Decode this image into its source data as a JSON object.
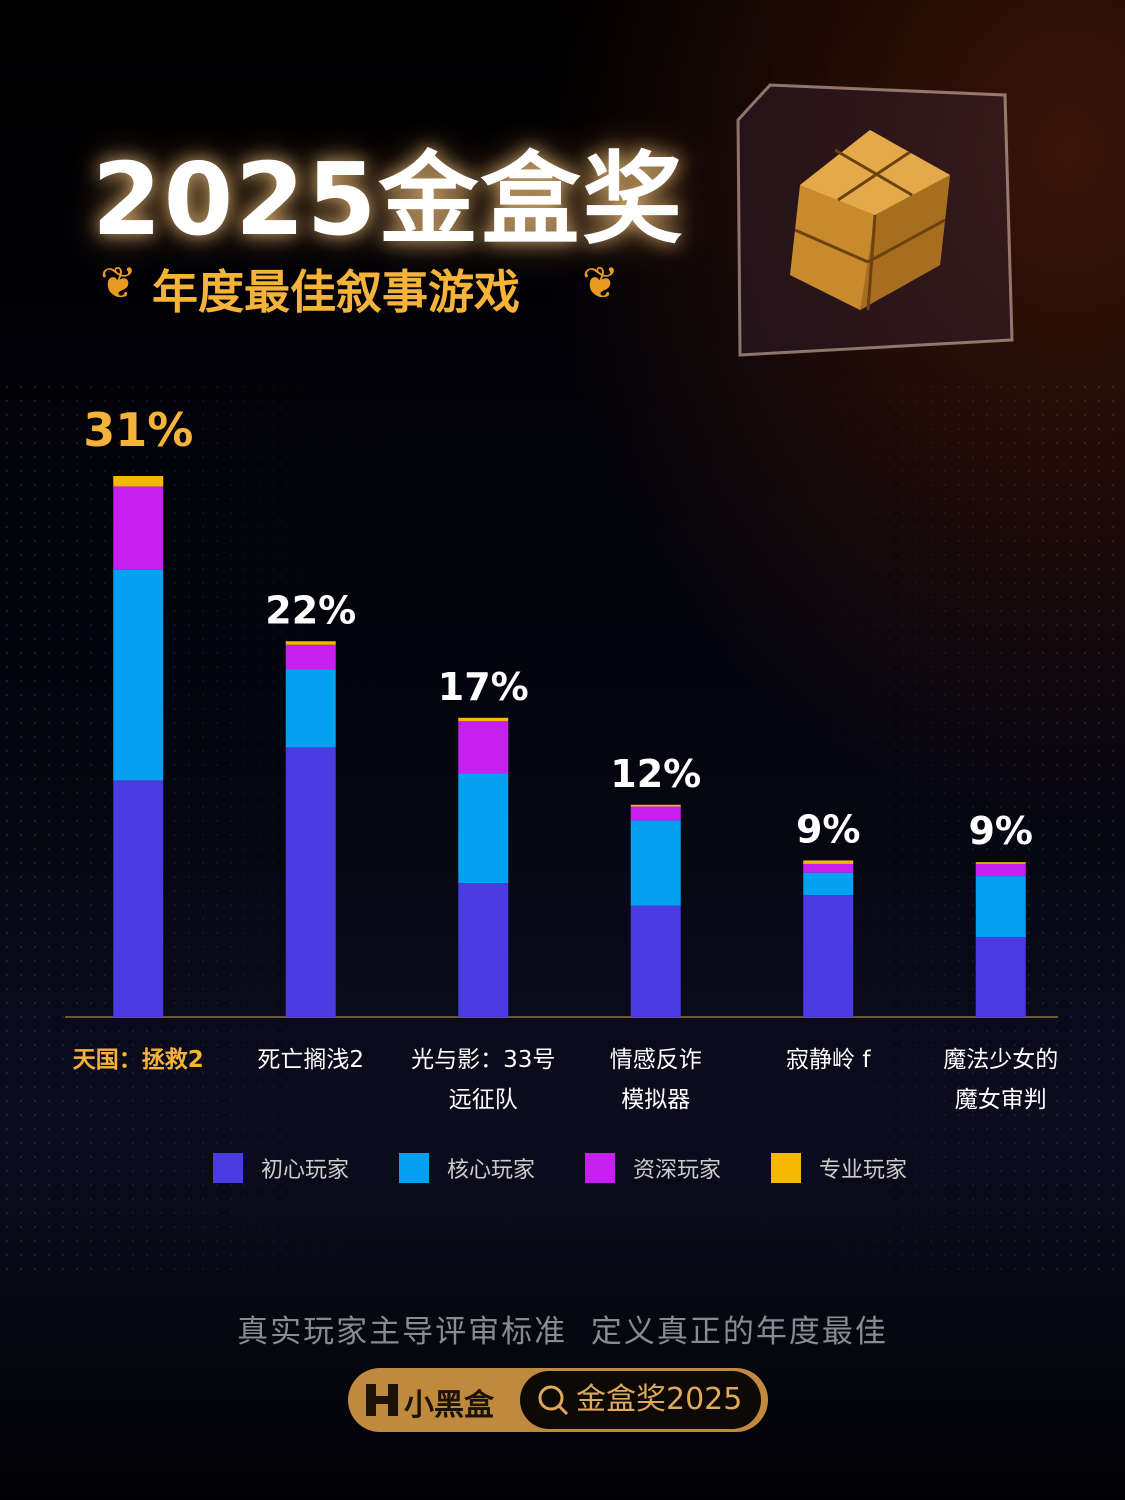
{
  "header": {
    "title": "2025金盒奖",
    "subtitle": "年度最佳叙事游戏"
  },
  "chart_data": {
    "type": "stacked_bar",
    "categories": [
      "天国：拯救2",
      "死亡搁浅2",
      "光与影：33号\n远征队",
      "情感反诈\n模拟器",
      "寂静岭 f",
      "魔法少女的\n魔女审判"
    ],
    "series": [
      {
        "name": "初心玩家",
        "color": "#4a3ce0",
        "values": [
          13.6,
          15.5,
          7.7,
          6.4,
          7.0,
          4.6
        ]
      },
      {
        "name": "核心玩家",
        "color": "#06a0f0",
        "values": [
          12.1,
          4.5,
          6.3,
          4.9,
          1.3,
          3.5
        ]
      },
      {
        "name": "资深玩家",
        "color": "#c61ff0",
        "values": [
          4.8,
          1.4,
          3.0,
          0.8,
          0.5,
          0.7
        ]
      },
      {
        "name": "专业玩家",
        "color": "#f5b800",
        "values": [
          0.6,
          0.2,
          0.2,
          0.1,
          0.2,
          0.1
        ]
      }
    ],
    "totals": [
      31,
      22,
      17,
      12,
      9,
      9
    ],
    "total_labels": [
      "31%",
      "22%",
      "17%",
      "12%",
      "9%",
      "9%"
    ]
  },
  "footer": {
    "slogan": "真实玩家主导评审标准  定义真正的年度最佳",
    "brand": "小黑盒",
    "search": "金盒奖2025"
  }
}
